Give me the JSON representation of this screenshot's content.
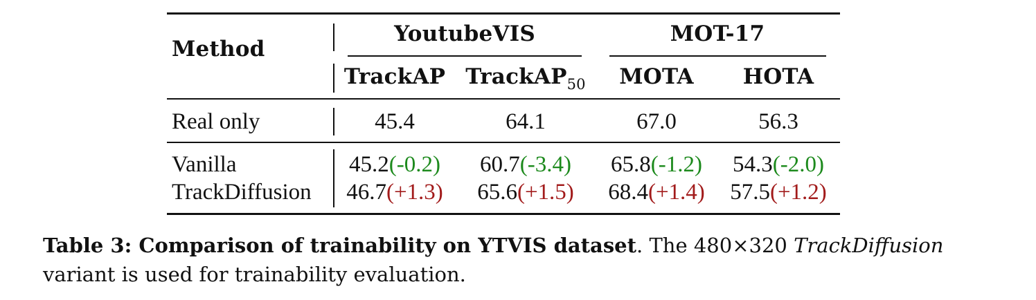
{
  "table": {
    "method_header": "Method",
    "group_headers": [
      "YoutubeVIS",
      "MOT-17"
    ],
    "metrics": [
      {
        "name": "TrackAP",
        "sub": ""
      },
      {
        "name": "TrackAP",
        "sub": "50"
      },
      {
        "name": "MOTA",
        "sub": ""
      },
      {
        "name": "HOTA",
        "sub": ""
      }
    ],
    "rows": [
      {
        "method": "Real only",
        "cells": [
          {
            "value": "45.4",
            "delta": ""
          },
          {
            "value": "64.1",
            "delta": ""
          },
          {
            "value": "67.0",
            "delta": ""
          },
          {
            "value": "56.3",
            "delta": ""
          }
        ]
      },
      {
        "method": "Vanilla",
        "cells": [
          {
            "value": "45.2",
            "delta": "(-0.2)"
          },
          {
            "value": "60.7",
            "delta": "(-3.4)"
          },
          {
            "value": "65.8",
            "delta": "(-1.2)"
          },
          {
            "value": "54.3",
            "delta": "(-2.0)"
          }
        ]
      },
      {
        "method": "TrackDiffusion",
        "cells": [
          {
            "value": "46.7",
            "delta": "(+1.3)"
          },
          {
            "value": "65.6",
            "delta": "(+1.5)"
          },
          {
            "value": "68.4",
            "delta": "(+1.4)"
          },
          {
            "value": "57.5",
            "delta": "(+1.2)"
          }
        ]
      }
    ],
    "colors": {
      "negative": "#1d8a1d",
      "positive": "#a21b1b"
    }
  },
  "caption": {
    "label": "Table 3: Comparison of trainability on YTVIS dataset",
    "text_before_italic": ". The 480×320 ",
    "italic": "TrackDiffusion",
    "text_after_italic": " variant is used for trainability evaluation."
  }
}
